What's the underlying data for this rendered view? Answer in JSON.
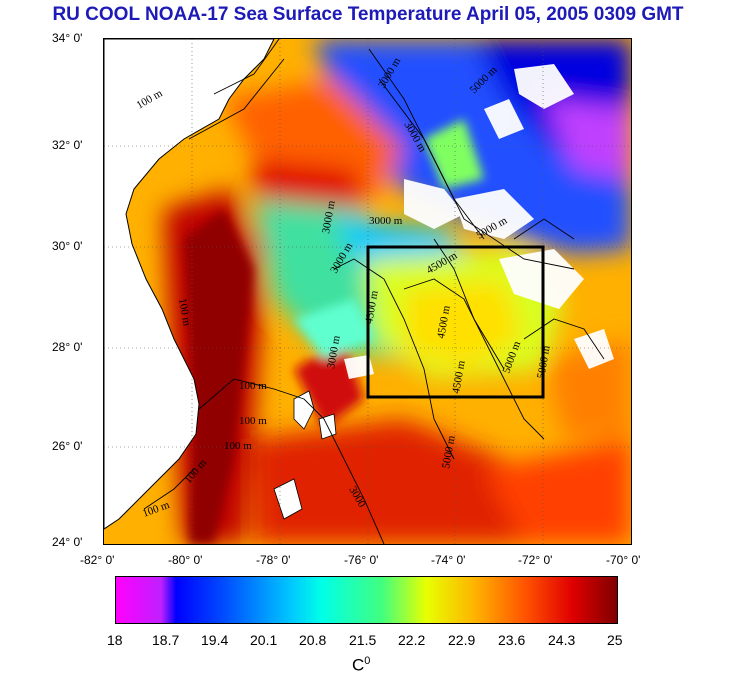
{
  "title": "RU COOL  NOAA-17 Sea Surface Temperature April 05, 2005 0309 GMT",
  "lat_labels": [
    "34° 0'",
    "32° 0'",
    "30° 0'",
    "28° 0'",
    "26° 0'",
    "24° 0'"
  ],
  "lon_labels": [
    "-82° 0'",
    "-80° 0'",
    "-78° 0'",
    "-76° 0'",
    "-74° 0'",
    "-72° 0'",
    "-70° 0'"
  ],
  "colorbar": {
    "ticks": [
      "18",
      "18.7",
      "19.4",
      "20.1",
      "20.8",
      "21.5",
      "22.2",
      "22.9",
      "23.6",
      "24.3",
      "25"
    ],
    "unit": "C",
    "unit_sup": "0"
  },
  "contour_labels": [
    "100 m",
    "100 m",
    "100 m",
    "100 m",
    "100 m",
    "100 m",
    "100 m",
    "3000 m",
    "3000 m",
    "3000 m",
    "3000 m",
    "3000 m",
    "3000 m",
    "4500 m",
    "4500 m",
    "4500 m",
    "4500 m",
    "5000 m",
    "5000 m",
    "5000 m",
    "5000 m",
    "5000 m",
    "3000"
  ],
  "colors": {
    "title": "#1d1ab8",
    "cold": "#0000ff",
    "warm": "#e00000",
    "land": "#ffffff"
  }
}
